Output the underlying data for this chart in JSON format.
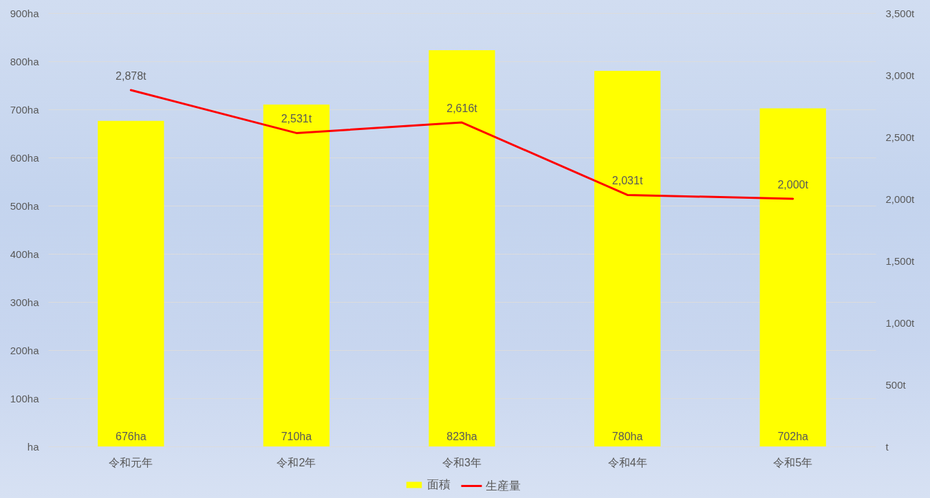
{
  "chart_data": {
    "type": "bar",
    "categories": [
      "令和元年",
      "令和2年",
      "令和3年",
      "令和4年",
      "令和5年"
    ],
    "series": [
      {
        "name": "面積",
        "type": "bar",
        "color": "#ffff00",
        "values": [
          676,
          710,
          823,
          780,
          702
        ],
        "value_labels": [
          "676ha",
          "710ha",
          "823ha",
          "780ha",
          "702ha"
        ]
      },
      {
        "name": "生産量",
        "type": "line",
        "axis": "y2",
        "color": "#ff0000",
        "values": [
          2878,
          2531,
          2616,
          2031,
          2000
        ],
        "value_labels": [
          "2,878t",
          "2,531t",
          "2,616t",
          "2,031t",
          "2,000t"
        ]
      }
    ],
    "ylim": [
      0,
      900
    ],
    "yticks": [
      {
        "value": 0,
        "label": "ha"
      },
      {
        "value": 100,
        "label": "100ha"
      },
      {
        "value": 200,
        "label": "200ha"
      },
      {
        "value": 300,
        "label": "300ha"
      },
      {
        "value": 400,
        "label": "400ha"
      },
      {
        "value": 500,
        "label": "500ha"
      },
      {
        "value": 600,
        "label": "600ha"
      },
      {
        "value": 700,
        "label": "700ha"
      },
      {
        "value": 800,
        "label": "800ha"
      },
      {
        "value": 900,
        "label": "900ha"
      }
    ],
    "y2lim": [
      0,
      3500
    ],
    "y2ticks": [
      {
        "value": 0,
        "label": "t"
      },
      {
        "value": 500,
        "label": "500t"
      },
      {
        "value": 1000,
        "label": "1,000t"
      },
      {
        "value": 1500,
        "label": "1,500t"
      },
      {
        "value": 2000,
        "label": "2,000t"
      },
      {
        "value": 2500,
        "label": "2,500t"
      },
      {
        "value": 3000,
        "label": "3,000t"
      },
      {
        "value": 3500,
        "label": "3,500t"
      }
    ],
    "grid": "y",
    "legend": "bottom",
    "line_style": "solid"
  }
}
